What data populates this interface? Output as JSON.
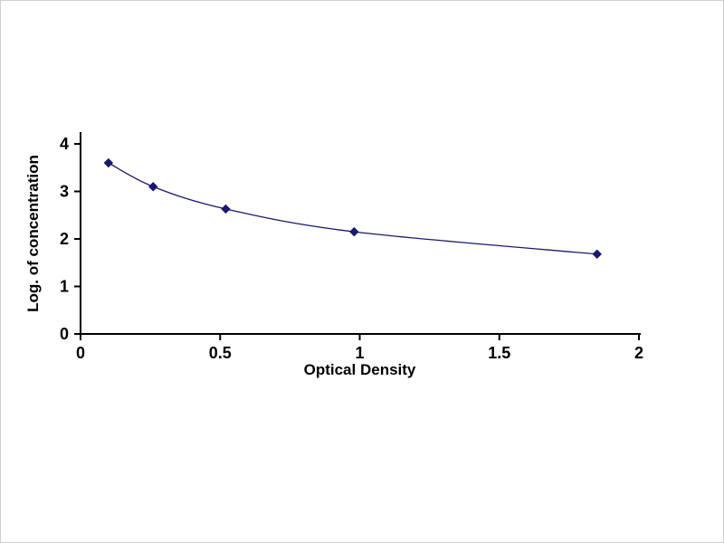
{
  "chart_data": {
    "type": "line",
    "title": "",
    "xlabel": "Optical Density",
    "ylabel": "Log. of concentration",
    "x": [
      0.1,
      0.26,
      0.52,
      0.98,
      1.85
    ],
    "y": [
      3.6,
      3.1,
      2.63,
      2.15,
      1.68
    ],
    "xlim": [
      0,
      2
    ],
    "ylim": [
      0,
      4
    ],
    "x_tick_values": [
      0,
      0.5,
      1,
      1.5,
      2
    ],
    "x_tick_labels": [
      "0",
      "0.5",
      "1",
      "1.5",
      "2"
    ],
    "y_tick_values": [
      0,
      1,
      2,
      3,
      4
    ],
    "y_tick_labels": [
      "0",
      "1",
      "2",
      "3",
      "4"
    ],
    "grid": false,
    "legend": null,
    "marker": "diamond",
    "line_color": "#191970",
    "marker_color": "#191970",
    "axis_color": "#000000",
    "tick_font_color": "#000000"
  }
}
